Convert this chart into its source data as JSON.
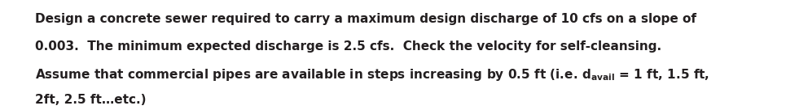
{
  "background_color": "#ffffff",
  "text_color": "#231f20",
  "line1": "Design a concrete sewer required to carry a maximum design discharge of 10 cfs on a slope of",
  "line2": "0.003.  The minimum expected discharge is 2.5 cfs.  Check the velocity for self-cleansing.",
  "line3_part1": "Assume that commercial pipes are available in steps increasing by 0.5 ft (i.e. d",
  "line3_sub": "avail",
  "line3_part2": " = 1 ft, 1.5 ft,",
  "line4": "2ft, 2.5 ft…etc.)",
  "font_size": 11.0,
  "sub_font_size": 8.5,
  "figwidth": 9.65,
  "figheight": 1.36,
  "dpi": 100
}
